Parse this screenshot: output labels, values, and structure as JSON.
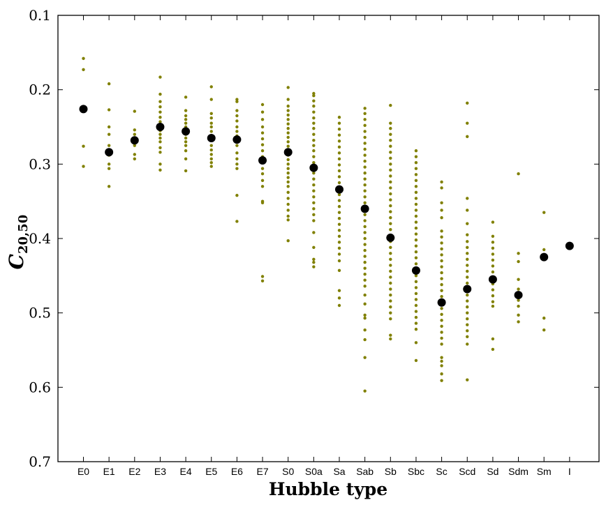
{
  "chart_data": {
    "type": "scatter",
    "title": "",
    "xlabel": "Hubble type",
    "ylabel": {
      "main": "C",
      "subscript": "20,50"
    },
    "y_inverted": true,
    "ylim": [
      0.1,
      0.7
    ],
    "yticks": [
      "0.1",
      "0.2",
      "0.3",
      "0.4",
      "0.5",
      "0.6",
      "0.7"
    ],
    "categories": [
      "E0",
      "E1",
      "E2",
      "E3",
      "E4",
      "E5",
      "E6",
      "E7",
      "S0",
      "S0a",
      "Sa",
      "Sab",
      "Sb",
      "Sbc",
      "Sc",
      "Scd",
      "Sd",
      "Sdm",
      "Sm",
      "I"
    ],
    "colors": {
      "individual": "#808000",
      "mean": "#000000"
    },
    "series": [
      {
        "values": [
          [
            0.158,
            0.173,
            0.276,
            0.303
          ],
          [
            0.192,
            0.227,
            0.25,
            0.26,
            0.275,
            0.288,
            0.3,
            0.306,
            0.33
          ],
          [
            0.229,
            0.254,
            0.26,
            0.268,
            0.275,
            0.287,
            0.293
          ],
          [
            0.183,
            0.206,
            0.216,
            0.223,
            0.23,
            0.237,
            0.243,
            0.25,
            0.255,
            0.26,
            0.265,
            0.27,
            0.278,
            0.284,
            0.3,
            0.308
          ],
          [
            0.21,
            0.228,
            0.235,
            0.24,
            0.245,
            0.25,
            0.255,
            0.26,
            0.265,
            0.27,
            0.275,
            0.282,
            0.293,
            0.309
          ],
          [
            0.196,
            0.213,
            0.232,
            0.238,
            0.245,
            0.25,
            0.256,
            0.262,
            0.268,
            0.275,
            0.281,
            0.287,
            0.293,
            0.298,
            0.303
          ],
          [
            0.213,
            0.216,
            0.228,
            0.235,
            0.242,
            0.25,
            0.256,
            0.262,
            0.268,
            0.275,
            0.285,
            0.293,
            0.3,
            0.306,
            0.342,
            0.377
          ],
          [
            0.22,
            0.23,
            0.24,
            0.25,
            0.258,
            0.266,
            0.274,
            0.282,
            0.29,
            0.298,
            0.306,
            0.313,
            0.322,
            0.33,
            0.35,
            0.352,
            0.451,
            0.457
          ],
          [
            0.197,
            0.213,
            0.222,
            0.228,
            0.234,
            0.24,
            0.246,
            0.252,
            0.258,
            0.264,
            0.27,
            0.276,
            0.282,
            0.288,
            0.294,
            0.3,
            0.306,
            0.312,
            0.318,
            0.324,
            0.33,
            0.338,
            0.346,
            0.354,
            0.362,
            0.37,
            0.375,
            0.403
          ],
          [
            0.205,
            0.208,
            0.215,
            0.222,
            0.23,
            0.238,
            0.245,
            0.252,
            0.26,
            0.268,
            0.275,
            0.282,
            0.29,
            0.298,
            0.305,
            0.312,
            0.32,
            0.328,
            0.336,
            0.344,
            0.352,
            0.36,
            0.368,
            0.376,
            0.392,
            0.412,
            0.428,
            0.432,
            0.438
          ],
          [
            0.237,
            0.245,
            0.253,
            0.261,
            0.269,
            0.277,
            0.285,
            0.293,
            0.301,
            0.309,
            0.317,
            0.325,
            0.333,
            0.341,
            0.349,
            0.357,
            0.365,
            0.373,
            0.381,
            0.389,
            0.397,
            0.405,
            0.413,
            0.421,
            0.43,
            0.443,
            0.47,
            0.48,
            0.49
          ],
          [
            0.225,
            0.232,
            0.24,
            0.248,
            0.256,
            0.264,
            0.272,
            0.28,
            0.288,
            0.296,
            0.304,
            0.312,
            0.32,
            0.328,
            0.336,
            0.344,
            0.352,
            0.36,
            0.368,
            0.376,
            0.384,
            0.392,
            0.4,
            0.408,
            0.416,
            0.424,
            0.432,
            0.44,
            0.448,
            0.456,
            0.464,
            0.476,
            0.488,
            0.503,
            0.507,
            0.523,
            0.536,
            0.56,
            0.605
          ],
          [
            0.221,
            0.245,
            0.252,
            0.26,
            0.268,
            0.276,
            0.284,
            0.292,
            0.3,
            0.308,
            0.316,
            0.324,
            0.332,
            0.34,
            0.348,
            0.356,
            0.364,
            0.372,
            0.38,
            0.388,
            0.396,
            0.404,
            0.412,
            0.42,
            0.428,
            0.436,
            0.444,
            0.452,
            0.46,
            0.468,
            0.476,
            0.484,
            0.492,
            0.5,
            0.508,
            0.53,
            0.535
          ],
          [
            0.282,
            0.29,
            0.298,
            0.306,
            0.314,
            0.322,
            0.33,
            0.338,
            0.346,
            0.354,
            0.362,
            0.37,
            0.378,
            0.386,
            0.394,
            0.402,
            0.41,
            0.418,
            0.426,
            0.434,
            0.442,
            0.45,
            0.458,
            0.466,
            0.474,
            0.482,
            0.49,
            0.498,
            0.506,
            0.514,
            0.522,
            0.54,
            0.564
          ],
          [
            0.324,
            0.332,
            0.352,
            0.362,
            0.372,
            0.39,
            0.398,
            0.406,
            0.414,
            0.422,
            0.43,
            0.438,
            0.446,
            0.454,
            0.462,
            0.47,
            0.478,
            0.486,
            0.494,
            0.502,
            0.51,
            0.518,
            0.526,
            0.534,
            0.542,
            0.56,
            0.565,
            0.571,
            0.582,
            0.591
          ],
          [
            0.218,
            0.245,
            0.263,
            0.346,
            0.362,
            0.38,
            0.395,
            0.404,
            0.412,
            0.42,
            0.428,
            0.436,
            0.444,
            0.452,
            0.46,
            0.468,
            0.476,
            0.484,
            0.492,
            0.5,
            0.508,
            0.516,
            0.524,
            0.532,
            0.542,
            0.59
          ],
          [
            0.378,
            0.397,
            0.405,
            0.413,
            0.421,
            0.429,
            0.437,
            0.445,
            0.453,
            0.461,
            0.469,
            0.477,
            0.485,
            0.491,
            0.535,
            0.549
          ],
          [
            0.313,
            0.42,
            0.431,
            0.455,
            0.468,
            0.475,
            0.483,
            0.491,
            0.503,
            0.512
          ],
          [
            0.365,
            0.415,
            0.507,
            0.523
          ],
          []
        ]
      },
      {
        "values": [
          0.226,
          0.284,
          0.268,
          0.25,
          0.256,
          0.265,
          0.267,
          0.295,
          0.284,
          0.305,
          0.334,
          0.36,
          0.399,
          0.443,
          0.486,
          0.468,
          0.455,
          0.476,
          0.425,
          0.41
        ]
      }
    ]
  }
}
